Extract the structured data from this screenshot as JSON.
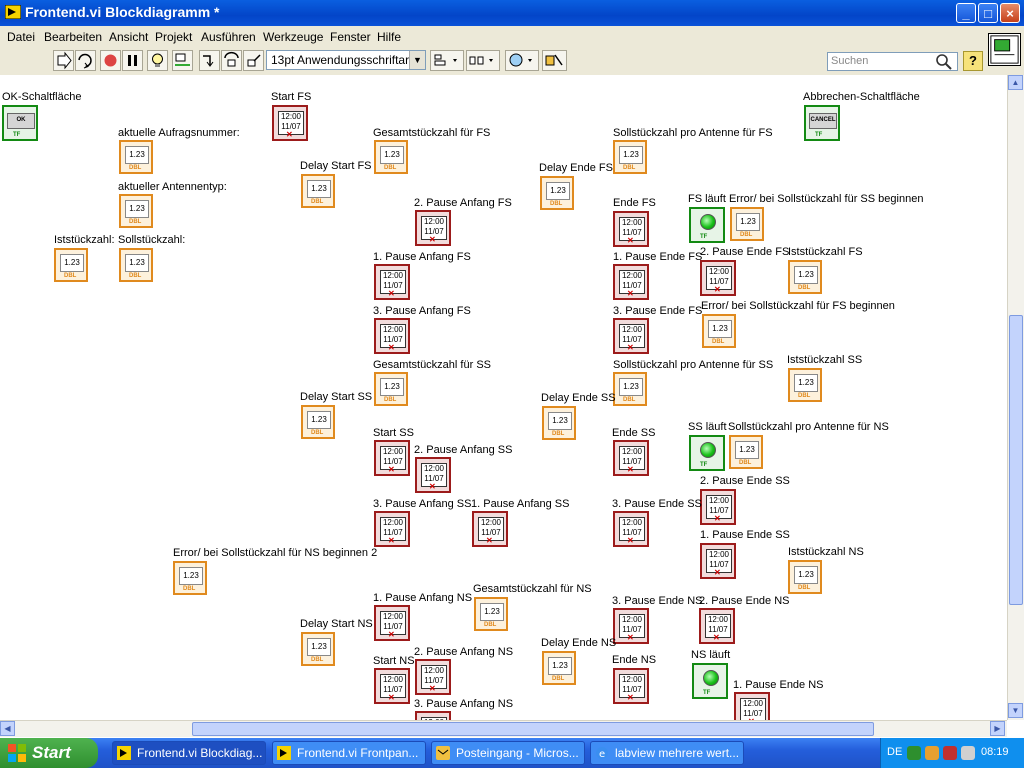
{
  "window": {
    "title": "Frontend.vi Blockdiagramm *",
    "min": "_",
    "max": "□",
    "close": "×"
  },
  "menu": [
    "Datei",
    "Bearbeiten",
    "Ansicht",
    "Projekt",
    "Ausführen",
    "Werkzeuge",
    "Fenster",
    "Hilfe"
  ],
  "toolbar": {
    "font": "13pt Anwendungsschriftart",
    "search_placeholder": "Suchen",
    "help": "?"
  },
  "terminals": [
    {
      "label": "OK-Schaltfläche",
      "type": "button",
      "face": "OK"
    },
    {
      "label": "Abbrechen-Schaltfläche",
      "type": "button",
      "face": "CANCEL"
    },
    {
      "label": "aktuelle Aufragsnummer:",
      "type": "dbl"
    },
    {
      "label": "aktueller Antennentyp:",
      "type": "dbl"
    },
    {
      "label": "Iststückzahl:",
      "type": "dbl"
    },
    {
      "label": "Sollstückzahl:",
      "type": "dbl"
    },
    {
      "label": "Start FS",
      "type": "ts"
    },
    {
      "label": "Delay Start FS",
      "type": "dbl"
    },
    {
      "label": "Gesamtstückzahl für FS",
      "type": "dbl"
    },
    {
      "label": "Delay Ende FS",
      "type": "dbl"
    },
    {
      "label": "Sollstückzahl pro Antenne für FS",
      "type": "dbl"
    },
    {
      "label": "2. Pause Anfang FS",
      "type": "ts"
    },
    {
      "label": "Ende FS",
      "type": "ts"
    },
    {
      "label": "FS läuft",
      "type": "tf"
    },
    {
      "label": "Error/ bei Sollstückzahl für SS beginnen",
      "type": "dbl"
    },
    {
      "label": "1. Pause Anfang FS",
      "type": "ts"
    },
    {
      "label": "1. Pause Ende FS",
      "type": "ts"
    },
    {
      "label": "2. Pause Ende FS",
      "type": "ts"
    },
    {
      "label": "Iststückzahl FS",
      "type": "dbl"
    },
    {
      "label": "Error/ bei Sollstückzahl für FS beginnen",
      "type": "dbl"
    },
    {
      "label": "3. Pause Anfang FS",
      "type": "ts"
    },
    {
      "label": "3. Pause Ende FS",
      "type": "ts"
    },
    {
      "label": "Gesamtstückzahl für SS",
      "type": "dbl"
    },
    {
      "label": "Sollstückzahl pro Antenne für SS",
      "type": "dbl"
    },
    {
      "label": "Iststückzahl SS",
      "type": "dbl"
    },
    {
      "label": "Delay Start SS",
      "type": "dbl"
    },
    {
      "label": "Delay Ende SS",
      "type": "dbl"
    },
    {
      "label": "SS läuft",
      "type": "tf"
    },
    {
      "label": "Sollstückzahl pro Antenne für NS",
      "type": "dbl"
    },
    {
      "label": "Start SS",
      "type": "ts"
    },
    {
      "label": "2. Pause Anfang SS",
      "type": "ts"
    },
    {
      "label": "Ende SS",
      "type": "ts"
    },
    {
      "label": "2. Pause Ende SS",
      "type": "ts"
    },
    {
      "label": "3. Pause Anfang SS",
      "type": "ts"
    },
    {
      "label": "1. Pause Anfang SS",
      "type": "ts"
    },
    {
      "label": "3. Pause Ende SS",
      "type": "ts"
    },
    {
      "label": "1. Pause Ende SS",
      "type": "ts"
    },
    {
      "label": "Iststückzahl NS",
      "type": "dbl"
    },
    {
      "label": "Error/ bei Sollstückzahl für NS beginnen 2",
      "type": "dbl"
    },
    {
      "label": "1. Pause Anfang NS",
      "type": "ts"
    },
    {
      "label": "Gesamtstückzahl für NS",
      "type": "dbl"
    },
    {
      "label": "3. Pause Ende NS",
      "type": "ts"
    },
    {
      "label": "2. Pause Ende NS",
      "type": "ts"
    },
    {
      "label": "Delay Start NS",
      "type": "dbl"
    },
    {
      "label": "Delay Ende NS",
      "type": "dbl"
    },
    {
      "label": "2. Pause Anfang NS",
      "type": "ts"
    },
    {
      "label": "Start NS",
      "type": "ts"
    },
    {
      "label": "Ende NS",
      "type": "ts"
    },
    {
      "label": "NS läuft",
      "type": "tf"
    },
    {
      "label": "1. Pause Ende NS",
      "type": "ts"
    },
    {
      "label": "3. Pause Anfang NS",
      "type": "ts"
    }
  ],
  "glyphs": {
    "dbl_value": "1.23",
    "dbl_tag": "DBL",
    "ts_value": "12:00 11/07",
    "tf_tag": "TF"
  },
  "taskbar": {
    "start": "Start",
    "tasks": [
      "Frontend.vi Blockdiag...",
      "Frontend.vi Frontpan...",
      "Posteingang - Micros...",
      "labview mehrere wert..."
    ],
    "lang": "DE",
    "clock": "08:19"
  }
}
